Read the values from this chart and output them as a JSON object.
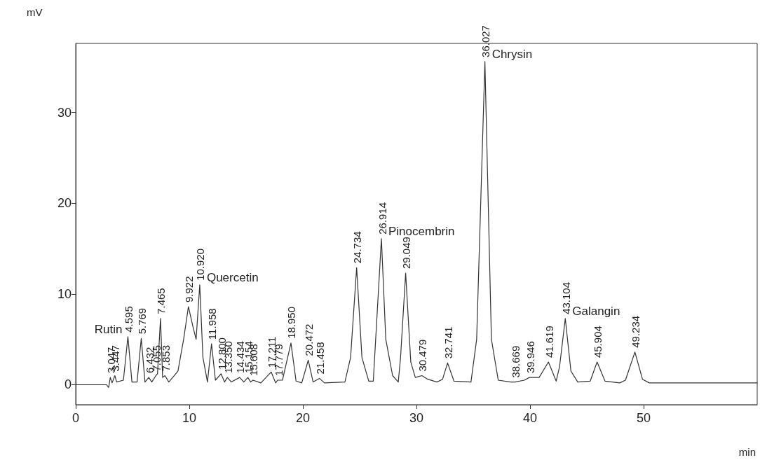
{
  "chart_data": {
    "type": "line",
    "xlabel": "min",
    "ylabel": "mV",
    "xlim": [
      0,
      60
    ],
    "xticks": [
      0,
      10,
      20,
      30,
      40,
      50
    ],
    "ylim": [
      -2.2,
      37.6
    ],
    "yticks": [
      0,
      10,
      20,
      30
    ],
    "grid": false,
    "marker": "none",
    "line_style": "solid",
    "series": [
      {
        "color": "#333333",
        "x": [
          0,
          2.7,
          2.9,
          3.047,
          3.2,
          3.447,
          3.6,
          4.2,
          4.595,
          4.95,
          5.4,
          5.769,
          6.1,
          6.432,
          6.7,
          7.055,
          7.2,
          7.465,
          7.65,
          7.853,
          8.2,
          9.0,
          9.5,
          9.922,
          10.3,
          10.6,
          10.92,
          11.2,
          11.6,
          11.958,
          12.3,
          12.8,
          13.1,
          13.35,
          13.7,
          14.434,
          14.8,
          15.154,
          15.4,
          15.608,
          16.3,
          17.211,
          17.6,
          17.779,
          18.2,
          18.95,
          19.4,
          19.9,
          20.472,
          20.9,
          21.458,
          21.9,
          23.7,
          24.2,
          24.734,
          25.2,
          25.8,
          26.2,
          26.914,
          27.3,
          27.9,
          28.4,
          28.6,
          29.049,
          29.5,
          29.9,
          30.479,
          31.0,
          31.8,
          32.3,
          32.741,
          33.3,
          34.8,
          35.3,
          36.027,
          36.6,
          37.2,
          38.3,
          38.669,
          39.5,
          39.946,
          40.8,
          41.619,
          42.3,
          42.6,
          43.104,
          43.6,
          44.2,
          45.3,
          45.904,
          46.6,
          47.9,
          48.4,
          49.234,
          49.9,
          50.5,
          60
        ],
        "values": [
          0,
          0,
          -0.3,
          0.8,
          0.2,
          1.0,
          0.3,
          0.5,
          5.3,
          0.3,
          0.3,
          5.1,
          0.3,
          0.8,
          0.3,
          1.0,
          1.2,
          7.3,
          0.8,
          1.0,
          0.3,
          1.5,
          5.0,
          8.6,
          6.5,
          5.0,
          11.0,
          3.0,
          0.3,
          4.5,
          0.5,
          1.2,
          0.3,
          0.8,
          0.3,
          0.8,
          0.3,
          0.8,
          0.3,
          0.5,
          0.2,
          1.4,
          0.2,
          0.5,
          0.5,
          4.6,
          0.4,
          0.2,
          2.7,
          0.3,
          0.7,
          0.2,
          0.3,
          3,
          12.9,
          3,
          0.4,
          0.4,
          16.1,
          5,
          1.0,
          0.3,
          3,
          12.3,
          2.5,
          0.8,
          1.0,
          0.6,
          0.3,
          0.6,
          2.4,
          0.4,
          0.3,
          5,
          35.6,
          5,
          0.5,
          0.3,
          0.3,
          0.5,
          0.8,
          0.8,
          2.5,
          0.4,
          2,
          7.3,
          1.5,
          0.3,
          0.4,
          2.5,
          0.4,
          0.2,
          0.5,
          3.6,
          0.6,
          0.2,
          0.2
        ]
      }
    ],
    "annotations": [
      {
        "text": "3.047",
        "x": 3.047,
        "y": 0.8
      },
      {
        "text": "3.447",
        "x": 3.447,
        "y": 1.0
      },
      {
        "text": "4.595",
        "x": 4.595,
        "y": 5.3
      },
      {
        "text": "Rutin",
        "x": 4.595,
        "y": 5.3
      },
      {
        "text": "5.769",
        "x": 5.769,
        "y": 5.1
      },
      {
        "text": "6.432",
        "x": 6.432,
        "y": 0.8
      },
      {
        "text": "7.055",
        "x": 7.055,
        "y": 1.0
      },
      {
        "text": "7.465",
        "x": 7.465,
        "y": 7.3
      },
      {
        "text": "7.853",
        "x": 7.853,
        "y": 1.0
      },
      {
        "text": "9.922",
        "x": 9.922,
        "y": 8.6
      },
      {
        "text": "10.920",
        "x": 10.92,
        "y": 11.0
      },
      {
        "text": "Quercetin",
        "x": 10.92,
        "y": 11.0
      },
      {
        "text": "11.958",
        "x": 11.958,
        "y": 4.5
      },
      {
        "text": "12.800",
        "x": 12.8,
        "y": 1.2
      },
      {
        "text": "13.350",
        "x": 13.35,
        "y": 0.8
      },
      {
        "text": "14.434",
        "x": 14.434,
        "y": 0.8
      },
      {
        "text": "15.154",
        "x": 15.154,
        "y": 0.8
      },
      {
        "text": "15.608",
        "x": 15.608,
        "y": 0.5
      },
      {
        "text": "17.211",
        "x": 17.211,
        "y": 1.4
      },
      {
        "text": "17.779",
        "x": 17.779,
        "y": 0.5
      },
      {
        "text": "18.950",
        "x": 18.95,
        "y": 4.6
      },
      {
        "text": "20.472",
        "x": 20.472,
        "y": 2.7
      },
      {
        "text": "21.458",
        "x": 21.458,
        "y": 0.7
      },
      {
        "text": "24.734",
        "x": 24.734,
        "y": 12.9
      },
      {
        "text": "26.914",
        "x": 26.914,
        "y": 16.1
      },
      {
        "text": "Pinocembrin",
        "x": 26.914,
        "y": 16.1
      },
      {
        "text": "29.049",
        "x": 29.049,
        "y": 12.3
      },
      {
        "text": "30.479",
        "x": 30.479,
        "y": 1.0
      },
      {
        "text": "32.741",
        "x": 32.741,
        "y": 2.4
      },
      {
        "text": "36.027",
        "x": 36.027,
        "y": 35.6
      },
      {
        "text": "Chrysin",
        "x": 36.027,
        "y": 35.6
      },
      {
        "text": "38.669",
        "x": 38.669,
        "y": 0.3
      },
      {
        "text": "39.946",
        "x": 39.946,
        "y": 0.8
      },
      {
        "text": "41.619",
        "x": 41.619,
        "y": 2.5
      },
      {
        "text": "43.104",
        "x": 43.104,
        "y": 7.3
      },
      {
        "text": "Galangin",
        "x": 43.104,
        "y": 7.3
      },
      {
        "text": "45.904",
        "x": 45.904,
        "y": 2.5
      },
      {
        "text": "49.234",
        "x": 49.234,
        "y": 3.6
      }
    ]
  }
}
